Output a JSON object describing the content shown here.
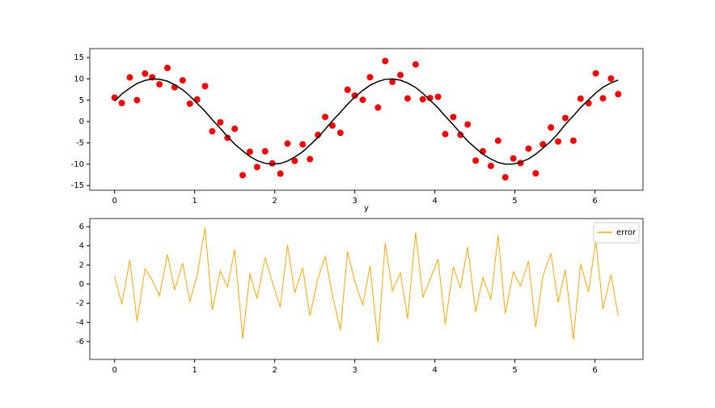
{
  "chart_data": [
    {
      "type": "scatter",
      "xlabel": "y",
      "x": [
        0,
        0.09,
        0.19,
        0.28,
        0.38,
        0.47,
        0.56,
        0.66,
        0.75,
        0.85,
        0.94,
        1.03,
        1.13,
        1.22,
        1.32,
        1.41,
        1.5,
        1.6,
        1.69,
        1.78,
        1.88,
        1.97,
        2.07,
        2.16,
        2.25,
        2.35,
        2.44,
        2.54,
        2.63,
        2.72,
        2.82,
        2.91,
        3.0,
        3.1,
        3.19,
        3.29,
        3.38,
        3.47,
        3.57,
        3.66,
        3.76,
        3.85,
        3.94,
        4.04,
        4.13,
        4.23,
        4.32,
        4.41,
        4.51,
        4.6,
        4.7,
        4.79,
        4.88,
        4.98,
        5.07,
        5.17,
        5.26,
        5.35,
        5.45,
        5.54,
        5.63,
        5.73,
        5.82,
        5.92,
        6.01,
        6.1,
        6.2,
        6.29
      ],
      "series": [
        {
          "type": "scatter",
          "color": "#ff0000",
          "values": [
            5.59,
            4.34,
            10.33,
            5.01,
            11.24,
            10.37,
            8.72,
            12.56,
            8.03,
            9.66,
            4.18,
            5.17,
            8.29,
            -2.28,
            -0.18,
            -3.81,
            -1.7,
            -12.58,
            -7.08,
            -10.66,
            -6.98,
            -9.8,
            -12.22,
            -5.16,
            -9.22,
            -5.36,
            -8.81,
            -3.14,
            1.08,
            -0.93,
            -2.65,
            7.45,
            6.08,
            5.09,
            10.4,
            3.28,
            14.18,
            9.29,
            10.9,
            5.42,
            13.38,
            5.23,
            5.51,
            5.79,
            -2.95,
            1.05,
            -3.12,
            -0.68,
            -9.15,
            -6.97,
            -10.4,
            -4.49,
            -13.07,
            -8.65,
            -9.72,
            -6.35,
            -12.14,
            -5.34,
            -1.4,
            -4.69,
            0.84,
            -4.48,
            5.37,
            4.29,
            11.3,
            5.44,
            10.06,
            6.42
          ]
        },
        {
          "type": "line",
          "color": "#000000",
          "values": [
            4.79,
            6.44,
            7.83,
            8.91,
            9.64,
            9.97,
            9.92,
            9.46,
            8.63,
            7.46,
            5.98,
            4.27,
            2.39,
            0.42,
            -1.58,
            -3.51,
            -5.3,
            -6.88,
            -8.18,
            -9.16,
            -9.78,
            -10,
            -9.82,
            -9.26,
            -8.32,
            -7.06,
            -5.51,
            -3.74,
            -1.82,
            0.17,
            2.15,
            4.05,
            5.78,
            7.29,
            8.5,
            9.38,
            9.88,
            9.99,
            9.7,
            9.02,
            7.98,
            6.63,
            5.01,
            3.19,
            1.25,
            -0.75,
            -2.72,
            -4.58,
            -6.25,
            -7.67,
            -8.8,
            -9.59,
            -9.97,
            -9.95,
            -9.52,
            -8.75,
            -7.64,
            -6.24,
            -4.6,
            -2.79,
            -0.66,
            1.32,
            3.27,
            5.09,
            6.7,
            8.04,
            9.06,
            9.72
          ]
        }
      ],
      "xlim": [
        -0.31,
        6.6
      ],
      "xticks": [
        0,
        1,
        2,
        3,
        4,
        5,
        6
      ],
      "ylim": [
        -16.1,
        17.1
      ],
      "yticks": [
        -15,
        -10,
        -5,
        0,
        5,
        10,
        15
      ]
    },
    {
      "type": "line",
      "legend": "upper right",
      "x": [
        0,
        0.09,
        0.19,
        0.28,
        0.38,
        0.47,
        0.56,
        0.66,
        0.75,
        0.85,
        0.94,
        1.03,
        1.13,
        1.22,
        1.32,
        1.41,
        1.5,
        1.6,
        1.69,
        1.78,
        1.88,
        1.97,
        2.07,
        2.16,
        2.25,
        2.35,
        2.44,
        2.54,
        2.63,
        2.72,
        2.82,
        2.91,
        3.0,
        3.1,
        3.19,
        3.29,
        3.38,
        3.47,
        3.57,
        3.66,
        3.76,
        3.85,
        3.94,
        4.04,
        4.13,
        4.23,
        4.32,
        4.41,
        4.51,
        4.6,
        4.7,
        4.79,
        4.88,
        4.98,
        5.07,
        5.17,
        5.26,
        5.35,
        5.45,
        5.54,
        5.63,
        5.73,
        5.82,
        5.92,
        6.01,
        6.1,
        6.2,
        6.29
      ],
      "series": [
        {
          "name": "error",
          "color": "#ffa500",
          "values": [
            0.8,
            -2.1,
            2.5,
            -3.9,
            1.6,
            0.4,
            -1.2,
            3.1,
            -0.6,
            2.2,
            -1.8,
            0.9,
            5.9,
            -2.7,
            1.4,
            -0.3,
            3.6,
            -5.7,
            1.1,
            -1.5,
            2.8,
            0.2,
            -2.4,
            4.1,
            -0.9,
            1.7,
            -3.3,
            0.6,
            2.9,
            -1.1,
            -4.8,
            3.4,
            0.3,
            -2.2,
            1.9,
            -6.1,
            4.3,
            -0.7,
            1.2,
            -3.6,
            5.4,
            -1.4,
            0.5,
            2.6,
            -4.2,
            1.8,
            -0.4,
            3.9,
            -2.9,
            0.7,
            -1.6,
            5.1,
            -3.1,
            1.3,
            -0.2,
            2.4,
            -4.5,
            0.9,
            3.2,
            -1.9,
            1.5,
            -5.8,
            2.1,
            -0.8,
            4.6,
            -2.6,
            1.0,
            -3.3
          ]
        }
      ],
      "xlim": [
        -0.31,
        6.6
      ],
      "xticks": [
        0,
        1,
        2,
        3,
        4,
        5,
        6
      ],
      "ylim": [
        -7.86,
        6.85
      ],
      "yticks": [
        -6,
        -4,
        -2,
        0,
        2,
        4,
        6
      ]
    }
  ]
}
